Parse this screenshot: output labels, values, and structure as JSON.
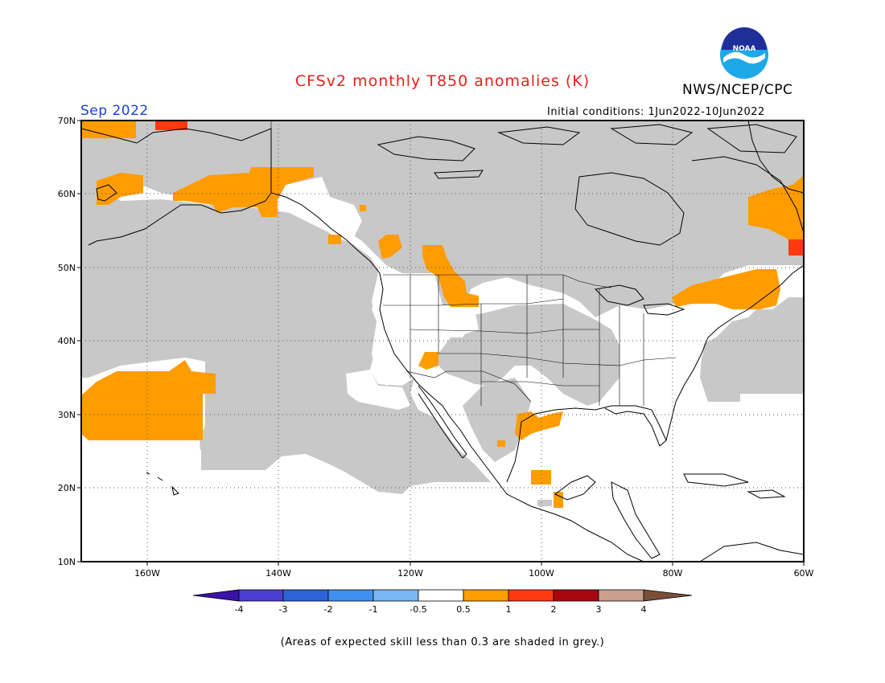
{
  "title": "CFSv2 monthly T850 anomalies (K)",
  "agency": "NWS/NCEP/CPC",
  "logo_text": "NOAA",
  "forecast_period": "Sep 2022",
  "initial_conditions": "Initial conditions: 1Jun2022-10Jun2022",
  "footnote": "(Areas of expected skill less than 0.3 are shaded in grey.)",
  "lat_labels": [
    "70N",
    "60N",
    "50N",
    "40N",
    "30N",
    "20N",
    "10N"
  ],
  "lon_labels": [
    "160W",
    "140W",
    "120W",
    "100W",
    "80W",
    "60W"
  ],
  "legend": {
    "ticks": [
      "-4",
      "-3",
      "-2",
      "-1",
      "-0.5",
      "0.5",
      "1",
      "2",
      "3",
      "4"
    ],
    "colors": [
      "#3b11a8",
      "#4a3fd0",
      "#2a64d8",
      "#3f8fee",
      "#7ab6f5",
      "#ffffff",
      "#ff9c00",
      "#ff3a10",
      "#a8070f",
      "#c9a08e",
      "#7a4f3a"
    ]
  },
  "colors": {
    "grey_low_skill": "#c8c8c8",
    "anomaly_0_5_to_1": "#ff9c00",
    "anomaly_1_to_2": "#ff3a10",
    "title": "#e8221c",
    "period": "#1a3fd4"
  }
}
